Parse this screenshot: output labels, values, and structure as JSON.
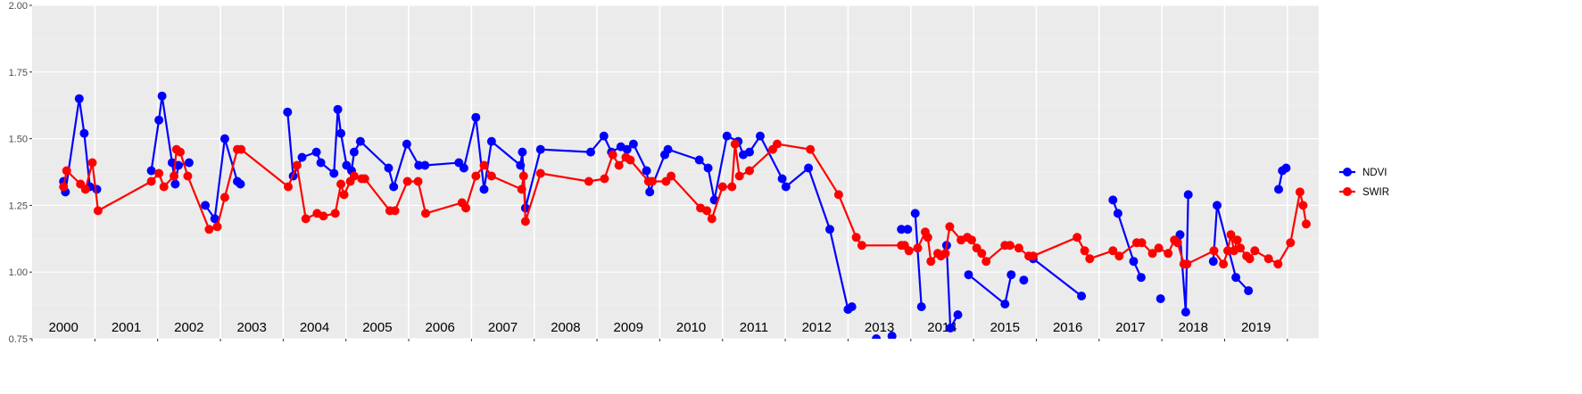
{
  "chart_data": {
    "type": "line",
    "title": "",
    "xlabel": "",
    "ylabel": "",
    "xlim": [
      1999.5,
      2020.0
    ],
    "ylim": [
      0.75,
      2.0
    ],
    "y_ticks": [
      "0.75",
      "1.00",
      "1.25",
      "1.50",
      "1.75",
      "2.00"
    ],
    "year_labels": [
      "2000",
      "2001",
      "2002",
      "2003",
      "2004",
      "2005",
      "2006",
      "2007",
      "2008",
      "2009",
      "2010",
      "2011",
      "2012",
      "2013",
      "2014",
      "2015",
      "2016",
      "2017",
      "2018",
      "2019"
    ],
    "grid": true,
    "legend_position": "right",
    "series": [
      {
        "name": "NDVI",
        "color": "#0000ff",
        "segments": [
          [
            [
              2000.0,
              1.34
            ],
            [
              2000.03,
              1.3
            ],
            [
              2000.25,
              1.65
            ],
            [
              2000.33,
              1.52
            ],
            [
              2000.42,
              1.32
            ],
            [
              2000.53,
              1.31
            ]
          ],
          [
            [
              2001.4,
              1.38
            ],
            [
              2001.52,
              1.57
            ],
            [
              2001.57,
              1.66
            ],
            [
              2001.73,
              1.41
            ],
            [
              2001.78,
              1.33
            ],
            [
              2001.83,
              1.4
            ],
            [
              2002.0,
              1.41
            ]
          ],
          [
            [
              2002.26,
              1.25
            ],
            [
              2002.41,
              1.2
            ],
            [
              2002.57,
              1.5
            ],
            [
              2002.77,
              1.34
            ],
            [
              2002.82,
              1.33
            ]
          ],
          [
            [
              2003.57,
              1.6
            ],
            [
              2003.66,
              1.36
            ],
            [
              2003.8,
              1.43
            ],
            [
              2004.03,
              1.45
            ],
            [
              2004.1,
              1.41
            ],
            [
              2004.31,
              1.37
            ],
            [
              2004.37,
              1.61
            ],
            [
              2004.42,
              1.52
            ],
            [
              2004.51,
              1.4
            ],
            [
              2004.59,
              1.38
            ],
            [
              2004.63,
              1.45
            ],
            [
              2004.73,
              1.49
            ],
            [
              2005.18,
              1.39
            ],
            [
              2005.26,
              1.32
            ],
            [
              2005.47,
              1.48
            ],
            [
              2005.66,
              1.4
            ],
            [
              2005.76,
              1.4
            ],
            [
              2006.3,
              1.41
            ],
            [
              2006.38,
              1.39
            ],
            [
              2006.57,
              1.58
            ],
            [
              2006.7,
              1.31
            ],
            [
              2006.82,
              1.49
            ],
            [
              2007.28,
              1.4
            ],
            [
              2007.31,
              1.45
            ],
            [
              2007.36,
              1.24
            ],
            [
              2007.6,
              1.46
            ],
            [
              2008.4,
              1.45
            ],
            [
              2008.61,
              1.51
            ],
            [
              2008.73,
              1.45
            ],
            [
              2008.88,
              1.47
            ],
            [
              2008.98,
              1.46
            ],
            [
              2009.08,
              1.48
            ],
            [
              2009.29,
              1.38
            ],
            [
              2009.34,
              1.3
            ],
            [
              2009.58,
              1.44
            ],
            [
              2009.63,
              1.46
            ],
            [
              2010.13,
              1.42
            ],
            [
              2010.27,
              1.39
            ],
            [
              2010.37,
              1.27
            ],
            [
              2010.57,
              1.51
            ],
            [
              2010.75,
              1.49
            ],
            [
              2010.83,
              1.44
            ],
            [
              2010.93,
              1.45
            ],
            [
              2011.1,
              1.51
            ],
            [
              2011.45,
              1.35
            ],
            [
              2011.51,
              1.32
            ],
            [
              2011.87,
              1.39
            ],
            [
              2012.21,
              1.16
            ],
            [
              2012.5,
              0.86
            ],
            [
              2012.56,
              0.87
            ]
          ]
        ],
        "markers": [
          [
            2012.95,
            0.75
          ],
          [
            2013.2,
            0.76
          ],
          [
            2013.35,
            1.16
          ],
          [
            2013.45,
            1.16
          ],
          [
            2013.57,
            1.22
          ],
          [
            2013.67,
            0.87
          ],
          [
            2014.07,
            1.1
          ],
          [
            2014.13,
            0.79
          ],
          [
            2014.25,
            0.84
          ],
          [
            2014.42,
            0.99
          ],
          [
            2015.0,
            0.88
          ],
          [
            2015.1,
            0.99
          ],
          [
            2015.3,
            0.97
          ],
          [
            2015.45,
            1.05
          ],
          [
            2016.22,
            0.91
          ],
          [
            2016.72,
            1.27
          ],
          [
            2016.8,
            1.22
          ],
          [
            2017.05,
            1.04
          ],
          [
            2017.17,
            0.98
          ],
          [
            2017.48,
            0.9
          ],
          [
            2017.79,
            1.14
          ],
          [
            2017.88,
            0.85
          ],
          [
            2017.92,
            1.29
          ],
          [
            2018.32,
            1.04
          ],
          [
            2018.38,
            1.25
          ],
          [
            2018.68,
            0.98
          ],
          [
            2018.88,
            0.93
          ],
          [
            2019.36,
            1.31
          ],
          [
            2019.42,
            1.38
          ],
          [
            2019.48,
            1.39
          ]
        ],
        "tail": [
          [
            2016.72,
            1.27
          ],
          [
            2016.8,
            1.22
          ],
          [
            2017.05,
            1.04
          ],
          [
            2017.17,
            0.98
          ]
        ],
        "tail2": [
          [
            2018.32,
            1.04
          ],
          [
            2018.38,
            1.25
          ],
          [
            2018.68,
            0.98
          ],
          [
            2018.88,
            0.93
          ]
        ],
        "tail3": [
          [
            2019.36,
            1.31
          ],
          [
            2019.42,
            1.38
          ],
          [
            2019.48,
            1.39
          ]
        ],
        "tail4": [
          [
            2013.57,
            1.22
          ],
          [
            2013.67,
            0.87
          ]
        ],
        "tail5": [
          [
            2014.07,
            1.1
          ],
          [
            2014.13,
            0.79
          ],
          [
            2014.25,
            0.84
          ]
        ],
        "tail6": [
          [
            2014.42,
            0.99
          ],
          [
            2015.0,
            0.88
          ],
          [
            2015.1,
            0.99
          ]
        ],
        "tail7": [
          [
            2015.45,
            1.05
          ],
          [
            2016.22,
            0.91
          ]
        ],
        "tail8": [
          [
            2017.79,
            1.14
          ],
          [
            2017.88,
            0.85
          ],
          [
            2017.92,
            1.29
          ]
        ]
      },
      {
        "name": "SWIR",
        "color": "#ff0000",
        "segments": [
          [
            [
              2000.0,
              1.32
            ],
            [
              2000.05,
              1.38
            ],
            [
              2000.27,
              1.33
            ],
            [
              2000.35,
              1.31
            ],
            [
              2000.46,
              1.41
            ],
            [
              2000.55,
              1.23
            ],
            [
              2001.4,
              1.34
            ],
            [
              2001.52,
              1.37
            ],
            [
              2001.6,
              1.32
            ],
            [
              2001.76,
              1.36
            ],
            [
              2001.8,
              1.46
            ],
            [
              2001.86,
              1.45
            ],
            [
              2001.98,
              1.36
            ],
            [
              2002.32,
              1.16
            ],
            [
              2002.45,
              1.17
            ],
            [
              2002.57,
              1.28
            ],
            [
              2002.77,
              1.46
            ],
            [
              2002.83,
              1.46
            ],
            [
              2003.58,
              1.32
            ],
            [
              2003.72,
              1.4
            ],
            [
              2003.86,
              1.2
            ],
            [
              2004.04,
              1.22
            ],
            [
              2004.14,
              1.21
            ],
            [
              2004.33,
              1.22
            ],
            [
              2004.42,
              1.33
            ],
            [
              2004.47,
              1.29
            ],
            [
              2004.57,
              1.34
            ],
            [
              2004.63,
              1.36
            ],
            [
              2004.75,
              1.35
            ],
            [
              2004.8,
              1.35
            ],
            [
              2005.2,
              1.23
            ],
            [
              2005.28,
              1.23
            ],
            [
              2005.48,
              1.34
            ],
            [
              2005.65,
              1.34
            ],
            [
              2005.77,
              1.22
            ],
            [
              2006.35,
              1.26
            ],
            [
              2006.41,
              1.24
            ],
            [
              2006.57,
              1.36
            ],
            [
              2006.7,
              1.4
            ],
            [
              2006.82,
              1.36
            ],
            [
              2007.3,
              1.31
            ],
            [
              2007.33,
              1.36
            ],
            [
              2007.36,
              1.19
            ],
            [
              2007.6,
              1.37
            ],
            [
              2008.37,
              1.34
            ],
            [
              2008.62,
              1.35
            ],
            [
              2008.75,
              1.44
            ],
            [
              2008.85,
              1.4
            ],
            [
              2008.96,
              1.43
            ],
            [
              2009.03,
              1.42
            ],
            [
              2009.32,
              1.34
            ],
            [
              2009.38,
              1.34
            ],
            [
              2009.6,
              1.34
            ],
            [
              2009.68,
              1.36
            ],
            [
              2010.15,
              1.24
            ],
            [
              2010.25,
              1.23
            ],
            [
              2010.33,
              1.2
            ],
            [
              2010.5,
              1.32
            ],
            [
              2010.65,
              1.32
            ],
            [
              2010.7,
              1.48
            ],
            [
              2010.77,
              1.36
            ],
            [
              2010.93,
              1.38
            ],
            [
              2011.3,
              1.46
            ],
            [
              2011.37,
              1.48
            ],
            [
              2011.9,
              1.46
            ],
            [
              2012.35,
              1.29
            ],
            [
              2012.63,
              1.13
            ],
            [
              2012.72,
              1.1
            ],
            [
              2013.35,
              1.1
            ],
            [
              2013.4,
              1.1
            ],
            [
              2013.47,
              1.08
            ],
            [
              2013.61,
              1.09
            ],
            [
              2013.73,
              1.15
            ],
            [
              2013.77,
              1.13
            ],
            [
              2013.82,
              1.04
            ],
            [
              2013.93,
              1.07
            ],
            [
              2013.98,
              1.06
            ],
            [
              2014.05,
              1.07
            ],
            [
              2014.12,
              1.17
            ],
            [
              2014.3,
              1.12
            ],
            [
              2014.4,
              1.13
            ],
            [
              2014.47,
              1.12
            ],
            [
              2014.55,
              1.09
            ],
            [
              2014.63,
              1.07
            ],
            [
              2014.7,
              1.04
            ],
            [
              2015.0,
              1.1
            ],
            [
              2015.08,
              1.1
            ],
            [
              2015.22,
              1.09
            ],
            [
              2015.38,
              1.06
            ],
            [
              2015.45,
              1.06
            ],
            [
              2016.15,
              1.13
            ],
            [
              2016.27,
              1.08
            ],
            [
              2016.35,
              1.05
            ],
            [
              2016.72,
              1.08
            ],
            [
              2016.82,
              1.06
            ],
            [
              2017.1,
              1.11
            ],
            [
              2017.18,
              1.11
            ],
            [
              2017.35,
              1.07
            ],
            [
              2017.45,
              1.09
            ],
            [
              2017.6,
              1.07
            ],
            [
              2017.7,
              1.12
            ],
            [
              2017.75,
              1.11
            ],
            [
              2017.85,
              1.03
            ],
            [
              2017.9,
              1.03
            ],
            [
              2018.33,
              1.08
            ],
            [
              2018.48,
              1.03
            ],
            [
              2018.55,
              1.08
            ],
            [
              2018.6,
              1.14
            ],
            [
              2018.65,
              1.08
            ],
            [
              2018.7,
              1.12
            ],
            [
              2018.75,
              1.09
            ],
            [
              2018.85,
              1.06
            ],
            [
              2018.9,
              1.05
            ],
            [
              2018.98,
              1.08
            ],
            [
              2019.2,
              1.05
            ],
            [
              2019.35,
              1.03
            ],
            [
              2019.55,
              1.11
            ],
            [
              2019.7,
              1.3
            ],
            [
              2019.75,
              1.25
            ],
            [
              2019.8,
              1.18
            ]
          ]
        ]
      }
    ]
  }
}
